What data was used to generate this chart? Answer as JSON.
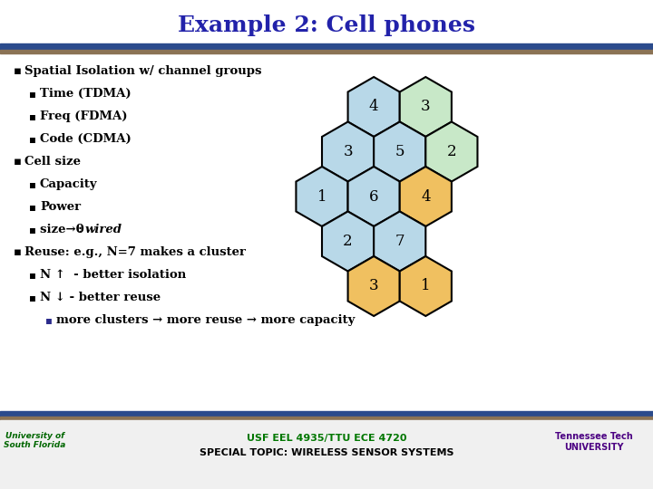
{
  "title": "Example 2: Cell phones",
  "title_color": "#2222AA",
  "title_fontsize": 18,
  "bg_color": "#FFFFFF",
  "bullet_lines": [
    {
      "level": 0,
      "text": "Spatial Isolation w/ channel groups"
    },
    {
      "level": 1,
      "text": "Time (TDMA)"
    },
    {
      "level": 1,
      "text": "Freq (FDMA)"
    },
    {
      "level": 1,
      "text": "Code (CDMA)"
    },
    {
      "level": 0,
      "text": "Cell size"
    },
    {
      "level": 1,
      "text": "Capacity"
    },
    {
      "level": 1,
      "text": "Power"
    },
    {
      "level": 1,
      "text": "size→0 : ",
      "italic": ": wired"
    },
    {
      "level": 0,
      "text": "Reuse: e.g., N=7 makes a cluster"
    },
    {
      "level": 1,
      "text": "N ↑  - better isolation"
    },
    {
      "level": 1,
      "text": "N ↓ - better reuse"
    },
    {
      "level": 2,
      "text": "more clusters → more reuse → more capacity"
    }
  ],
  "hexagons": [
    {
      "row": 0,
      "col": 1,
      "label": "4",
      "color": "#B8D8E8"
    },
    {
      "row": 0,
      "col": 2,
      "label": "3",
      "color": "#C8E8C8"
    },
    {
      "row": 1,
      "col": 0,
      "label": "3",
      "color": "#B8D8E8"
    },
    {
      "row": 1,
      "col": 1,
      "label": "5",
      "color": "#B8D8E8"
    },
    {
      "row": 1,
      "col": 2,
      "label": "2",
      "color": "#C8E8C8"
    },
    {
      "row": 2,
      "col": 0,
      "label": "1",
      "color": "#B8D8E8"
    },
    {
      "row": 2,
      "col": 1,
      "label": "6",
      "color": "#B8D8E8"
    },
    {
      "row": 2,
      "col": 2,
      "label": "4",
      "color": "#F0C060"
    },
    {
      "row": 3,
      "col": 0,
      "label": "2",
      "color": "#B8D8E8"
    },
    {
      "row": 3,
      "col": 1,
      "label": "7",
      "color": "#B8D8E8"
    },
    {
      "row": 4,
      "col": 1,
      "label": "3",
      "color": "#F0C060"
    },
    {
      "row": 4,
      "col": 2,
      "label": "1",
      "color": "#F0C060"
    }
  ],
  "header_bar1_color": "#2B4B8C",
  "header_bar2_color": "#8B7355",
  "footer_bar1_color": "#2B4B8C",
  "footer_bar2_color": "#8B7355",
  "footer_text1": "USF EEL 4935/TTU ECE 4720",
  "footer_text2": "SPECIAL TOPIC: WIRELESS SENSOR SYSTEMS",
  "footer_color1": "#007700",
  "footer_color2": "#000000",
  "footer_left1": "University of",
  "footer_left2": "South Florida",
  "footer_right1": "Tennessee Tech",
  "footer_right2": "UNIVERSITY",
  "footer_right_color": "#4B0082"
}
